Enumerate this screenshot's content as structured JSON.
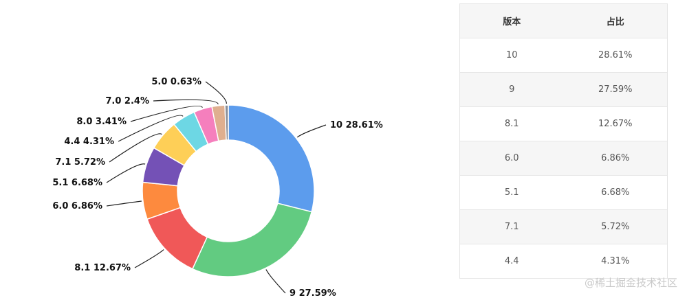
{
  "chart_data": {
    "type": "pie",
    "variant": "donut",
    "title": "",
    "start_angle": "12 o'clock, clockwise",
    "slices": [
      {
        "label": "10",
        "value": 28.61,
        "display": "10 28.61%",
        "color": "#5c9ced"
      },
      {
        "label": "9",
        "value": 27.59,
        "display": "9 27.59%",
        "color": "#62cb81"
      },
      {
        "label": "8.1",
        "value": 12.67,
        "display": "8.1 12.67%",
        "color": "#f05858"
      },
      {
        "label": "6.0",
        "value": 6.86,
        "display": "6.0 6.86%",
        "color": "#fd8a3e"
      },
      {
        "label": "5.1",
        "value": 6.68,
        "display": "5.1 6.68%",
        "color": "#7451b6"
      },
      {
        "label": "7.1",
        "value": 5.72,
        "display": "7.1 5.72%",
        "color": "#fecf57"
      },
      {
        "label": "4.4",
        "value": 4.31,
        "display": "4.4 4.31%",
        "color": "#6dd7e4"
      },
      {
        "label": "8.0",
        "value": 3.41,
        "display": "8.0 3.41%",
        "color": "#f57fbd"
      },
      {
        "label": "7.0",
        "value": 2.4,
        "display": "7.0 2.4%",
        "color": "#dfaf8f"
      },
      {
        "label": "5.0",
        "value": 0.63,
        "display": "5.0 0.63%",
        "color": "#8a8f99"
      }
    ]
  },
  "table": {
    "headers": {
      "version": "版本",
      "share": "占比"
    },
    "rows": [
      {
        "version": "10",
        "share": "28.61%"
      },
      {
        "version": "9",
        "share": "27.59%"
      },
      {
        "version": "8.1",
        "share": "12.67%"
      },
      {
        "version": "6.0",
        "share": "6.86%"
      },
      {
        "version": "5.1",
        "share": "6.68%"
      },
      {
        "version": "7.1",
        "share": "5.72%"
      },
      {
        "version": "4.4",
        "share": "4.31%"
      }
    ]
  },
  "watermark": "@稀土掘金技术社区"
}
